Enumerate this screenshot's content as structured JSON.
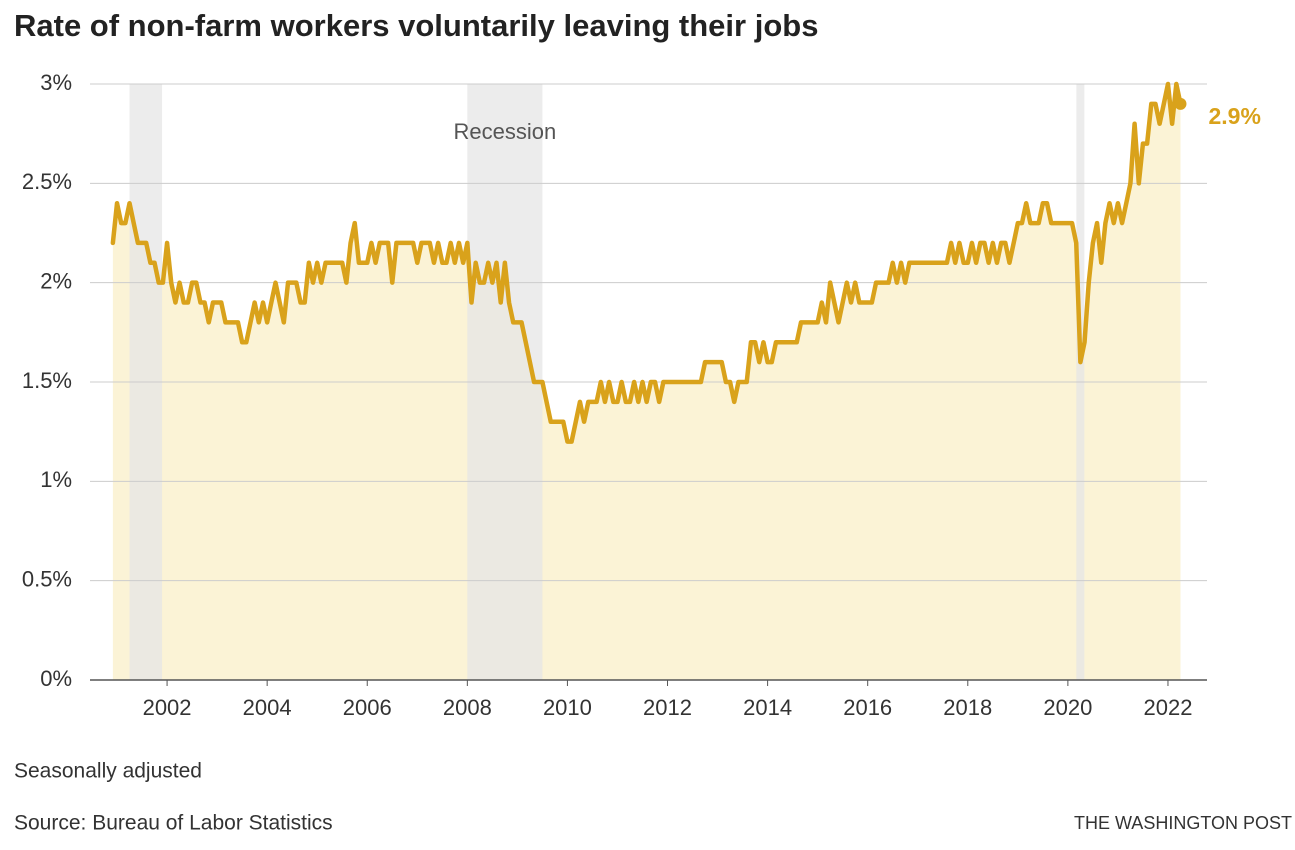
{
  "chart_data": {
    "type": "line",
    "title": "Rate of non-farm workers voluntarily leaving their jobs",
    "note": "Seasonally adjusted",
    "source": "Source: Bureau of Labor Statistics",
    "credit": "THE WASHINGTON POST",
    "annotation": "Recession",
    "line_color": "#d9a21b",
    "area_color": "#fbf3d6",
    "recession_color": "#e6e6e6",
    "grid": true,
    "xlim": [
      2000.46,
      2022.78
    ],
    "ylim": [
      0,
      3
    ],
    "xticks": [
      2002,
      2004,
      2006,
      2008,
      2010,
      2012,
      2014,
      2016,
      2018,
      2020,
      2022
    ],
    "yticks": [
      {
        "value": 0,
        "label": "0%"
      },
      {
        "value": 0.5,
        "label": "0.5%"
      },
      {
        "value": 1,
        "label": "1%"
      },
      {
        "value": 1.5,
        "label": "1.5%"
      },
      {
        "value": 2,
        "label": "2%"
      },
      {
        "value": 2.5,
        "label": "2.5%"
      },
      {
        "value": 3,
        "label": "3%"
      }
    ],
    "recessions": [
      {
        "start": 2001.25,
        "end": 2001.9
      },
      {
        "start": 2008.0,
        "end": 2009.5
      },
      {
        "start": 2020.17,
        "end": 2020.33
      }
    ],
    "x": [
      2000.917,
      2001,
      2001.083,
      2001.167,
      2001.25,
      2001.333,
      2001.417,
      2001.5,
      2001.583,
      2001.667,
      2001.75,
      2001.833,
      2001.917,
      2002,
      2002.083,
      2002.167,
      2002.25,
      2002.333,
      2002.417,
      2002.5,
      2002.583,
      2002.667,
      2002.75,
      2002.833,
      2002.917,
      2003,
      2003.083,
      2003.167,
      2003.25,
      2003.333,
      2003.417,
      2003.5,
      2003.583,
      2003.667,
      2003.75,
      2003.833,
      2003.917,
      2004,
      2004.083,
      2004.167,
      2004.25,
      2004.333,
      2004.417,
      2004.5,
      2004.583,
      2004.667,
      2004.75,
      2004.833,
      2004.917,
      2005,
      2005.083,
      2005.167,
      2005.25,
      2005.333,
      2005.417,
      2005.5,
      2005.583,
      2005.667,
      2005.75,
      2005.833,
      2005.917,
      2006,
      2006.083,
      2006.167,
      2006.25,
      2006.333,
      2006.417,
      2006.5,
      2006.583,
      2006.667,
      2006.75,
      2006.833,
      2006.917,
      2007,
      2007.083,
      2007.167,
      2007.25,
      2007.333,
      2007.417,
      2007.5,
      2007.583,
      2007.667,
      2007.75,
      2007.833,
      2007.917,
      2008,
      2008.083,
      2008.167,
      2008.25,
      2008.333,
      2008.417,
      2008.5,
      2008.583,
      2008.667,
      2008.75,
      2008.833,
      2008.917,
      2009,
      2009.083,
      2009.167,
      2009.25,
      2009.333,
      2009.417,
      2009.5,
      2009.583,
      2009.667,
      2009.75,
      2009.833,
      2009.917,
      2010,
      2010.083,
      2010.167,
      2010.25,
      2010.333,
      2010.417,
      2010.5,
      2010.583,
      2010.667,
      2010.75,
      2010.833,
      2010.917,
      2011,
      2011.083,
      2011.167,
      2011.25,
      2011.333,
      2011.417,
      2011.5,
      2011.583,
      2011.667,
      2011.75,
      2011.833,
      2011.917,
      2012,
      2012.083,
      2012.167,
      2012.25,
      2012.333,
      2012.417,
      2012.5,
      2012.583,
      2012.667,
      2012.75,
      2012.833,
      2012.917,
      2013,
      2013.083,
      2013.167,
      2013.25,
      2013.333,
      2013.417,
      2013.5,
      2013.583,
      2013.667,
      2013.75,
      2013.833,
      2013.917,
      2014,
      2014.083,
      2014.167,
      2014.25,
      2014.333,
      2014.417,
      2014.5,
      2014.583,
      2014.667,
      2014.75,
      2014.833,
      2014.917,
      2015,
      2015.083,
      2015.167,
      2015.25,
      2015.333,
      2015.417,
      2015.5,
      2015.583,
      2015.667,
      2015.75,
      2015.833,
      2015.917,
      2016,
      2016.083,
      2016.167,
      2016.25,
      2016.333,
      2016.417,
      2016.5,
      2016.583,
      2016.667,
      2016.75,
      2016.833,
      2016.917,
      2017,
      2017.083,
      2017.167,
      2017.25,
      2017.333,
      2017.417,
      2017.5,
      2017.583,
      2017.667,
      2017.75,
      2017.833,
      2017.917,
      2018,
      2018.083,
      2018.167,
      2018.25,
      2018.333,
      2018.417,
      2018.5,
      2018.583,
      2018.667,
      2018.75,
      2018.833,
      2018.917,
      2019,
      2019.083,
      2019.167,
      2019.25,
      2019.333,
      2019.417,
      2019.5,
      2019.583,
      2019.667,
      2019.75,
      2019.833,
      2019.917,
      2020,
      2020.083,
      2020.167,
      2020.25,
      2020.333,
      2020.417,
      2020.5,
      2020.583,
      2020.667,
      2020.75,
      2020.833,
      2020.917,
      2021,
      2021.083,
      2021.167,
      2021.25,
      2021.333,
      2021.417,
      2021.5,
      2021.583,
      2021.667,
      2021.75,
      2021.833,
      2021.917,
      2022,
      2022.083,
      2022.167,
      2022.25
    ],
    "values": [
      2.2,
      2.4,
      2.3,
      2.3,
      2.4,
      2.3,
      2.2,
      2.2,
      2.2,
      2.1,
      2.1,
      2.0,
      2.0,
      2.2,
      2.0,
      1.9,
      2.0,
      1.9,
      1.9,
      2.0,
      2.0,
      1.9,
      1.9,
      1.8,
      1.9,
      1.9,
      1.9,
      1.8,
      1.8,
      1.8,
      1.8,
      1.7,
      1.7,
      1.8,
      1.9,
      1.8,
      1.9,
      1.8,
      1.9,
      2.0,
      1.9,
      1.8,
      2.0,
      2.0,
      2.0,
      1.9,
      1.9,
      2.1,
      2.0,
      2.1,
      2.0,
      2.1,
      2.1,
      2.1,
      2.1,
      2.1,
      2.0,
      2.2,
      2.3,
      2.1,
      2.1,
      2.1,
      2.2,
      2.1,
      2.2,
      2.2,
      2.2,
      2.0,
      2.2,
      2.2,
      2.2,
      2.2,
      2.2,
      2.1,
      2.2,
      2.2,
      2.2,
      2.1,
      2.2,
      2.1,
      2.1,
      2.2,
      2.1,
      2.2,
      2.1,
      2.2,
      1.9,
      2.1,
      2.0,
      2.0,
      2.1,
      2.0,
      2.1,
      1.9,
      2.1,
      1.9,
      1.8,
      1.8,
      1.8,
      1.7,
      1.6,
      1.5,
      1.5,
      1.5,
      1.4,
      1.3,
      1.3,
      1.3,
      1.3,
      1.2,
      1.2,
      1.3,
      1.4,
      1.3,
      1.4,
      1.4,
      1.4,
      1.5,
      1.4,
      1.5,
      1.4,
      1.4,
      1.5,
      1.4,
      1.4,
      1.5,
      1.4,
      1.5,
      1.4,
      1.5,
      1.5,
      1.4,
      1.5,
      1.5,
      1.5,
      1.5,
      1.5,
      1.5,
      1.5,
      1.5,
      1.5,
      1.5,
      1.6,
      1.6,
      1.6,
      1.6,
      1.6,
      1.5,
      1.5,
      1.4,
      1.5,
      1.5,
      1.5,
      1.7,
      1.7,
      1.6,
      1.7,
      1.6,
      1.6,
      1.7,
      1.7,
      1.7,
      1.7,
      1.7,
      1.7,
      1.8,
      1.8,
      1.8,
      1.8,
      1.8,
      1.9,
      1.8,
      2.0,
      1.9,
      1.8,
      1.9,
      2.0,
      1.9,
      2.0,
      1.9,
      1.9,
      1.9,
      1.9,
      2.0,
      2.0,
      2.0,
      2.0,
      2.1,
      2.0,
      2.1,
      2.0,
      2.1,
      2.1,
      2.1,
      2.1,
      2.1,
      2.1,
      2.1,
      2.1,
      2.1,
      2.1,
      2.2,
      2.1,
      2.2,
      2.1,
      2.1,
      2.2,
      2.1,
      2.2,
      2.2,
      2.1,
      2.2,
      2.1,
      2.2,
      2.2,
      2.1,
      2.2,
      2.3,
      2.3,
      2.4,
      2.3,
      2.3,
      2.3,
      2.4,
      2.4,
      2.3,
      2.3,
      2.3,
      2.3,
      2.3,
      2.3,
      2.2,
      1.6,
      1.7,
      2.0,
      2.2,
      2.3,
      2.1,
      2.3,
      2.4,
      2.3,
      2.4,
      2.3,
      2.4,
      2.5,
      2.8,
      2.5,
      2.7,
      2.7,
      2.9,
      2.9,
      2.8,
      2.9,
      3.0,
      2.8,
      3.0,
      2.9
    ],
    "value_labels": [
      null,
      null,
      null,
      null,
      null,
      null,
      null,
      null,
      null,
      null,
      null,
      null,
      null,
      null,
      null,
      null,
      null,
      null,
      null,
      null,
      null,
      null,
      null,
      null,
      null,
      null,
      null,
      null,
      null,
      null,
      null,
      null,
      null,
      null,
      null,
      null,
      null,
      null,
      null,
      null,
      null,
      null,
      null,
      null,
      null,
      null,
      null,
      null,
      null,
      null,
      null,
      null,
      null,
      null,
      null,
      null,
      null,
      null,
      null,
      null,
      null,
      null,
      null,
      null,
      null,
      null,
      null,
      null,
      null,
      null,
      null,
      null,
      null,
      null,
      null,
      null,
      null,
      null,
      null,
      null,
      null,
      null,
      null,
      null,
      null,
      null,
      null,
      null,
      null,
      null,
      null,
      null,
      null,
      null,
      null,
      null,
      null,
      null,
      null,
      null,
      null,
      null,
      null,
      null,
      null,
      null,
      null,
      null,
      null,
      null,
      null,
      null,
      null,
      null,
      null,
      null,
      null,
      null,
      null,
      null,
      null,
      null,
      null,
      null,
      null,
      null,
      null,
      null,
      null,
      null,
      null,
      null,
      null,
      null,
      null,
      null,
      null,
      null,
      null,
      null,
      null,
      null,
      null,
      null,
      null,
      null,
      null,
      null,
      null,
      null,
      null,
      null,
      null,
      null,
      null,
      null,
      null,
      null,
      null,
      null,
      null,
      null,
      null,
      null,
      null,
      null,
      null,
      null,
      null,
      null,
      null,
      null,
      null,
      null,
      null,
      null,
      null,
      null,
      null,
      null,
      null,
      null,
      null,
      null,
      null,
      null,
      null,
      null,
      null,
      null,
      null,
      null,
      null,
      null,
      null,
      null,
      null,
      null,
      null,
      null,
      null,
      null,
      null,
      null,
      null,
      null,
      null,
      null,
      null,
      null,
      null,
      null,
      null,
      null,
      null,
      null,
      null,
      null,
      null,
      null,
      null,
      null,
      null,
      null,
      null,
      null,
      null,
      null,
      null,
      null,
      null,
      null,
      null,
      null,
      null,
      null,
      null,
      null,
      null,
      null,
      null,
      null,
      null,
      null,
      null,
      null,
      null,
      null,
      null,
      null,
      null,
      null,
      null,
      null,
      null,
      null,
      "2.9%"
    ]
  }
}
